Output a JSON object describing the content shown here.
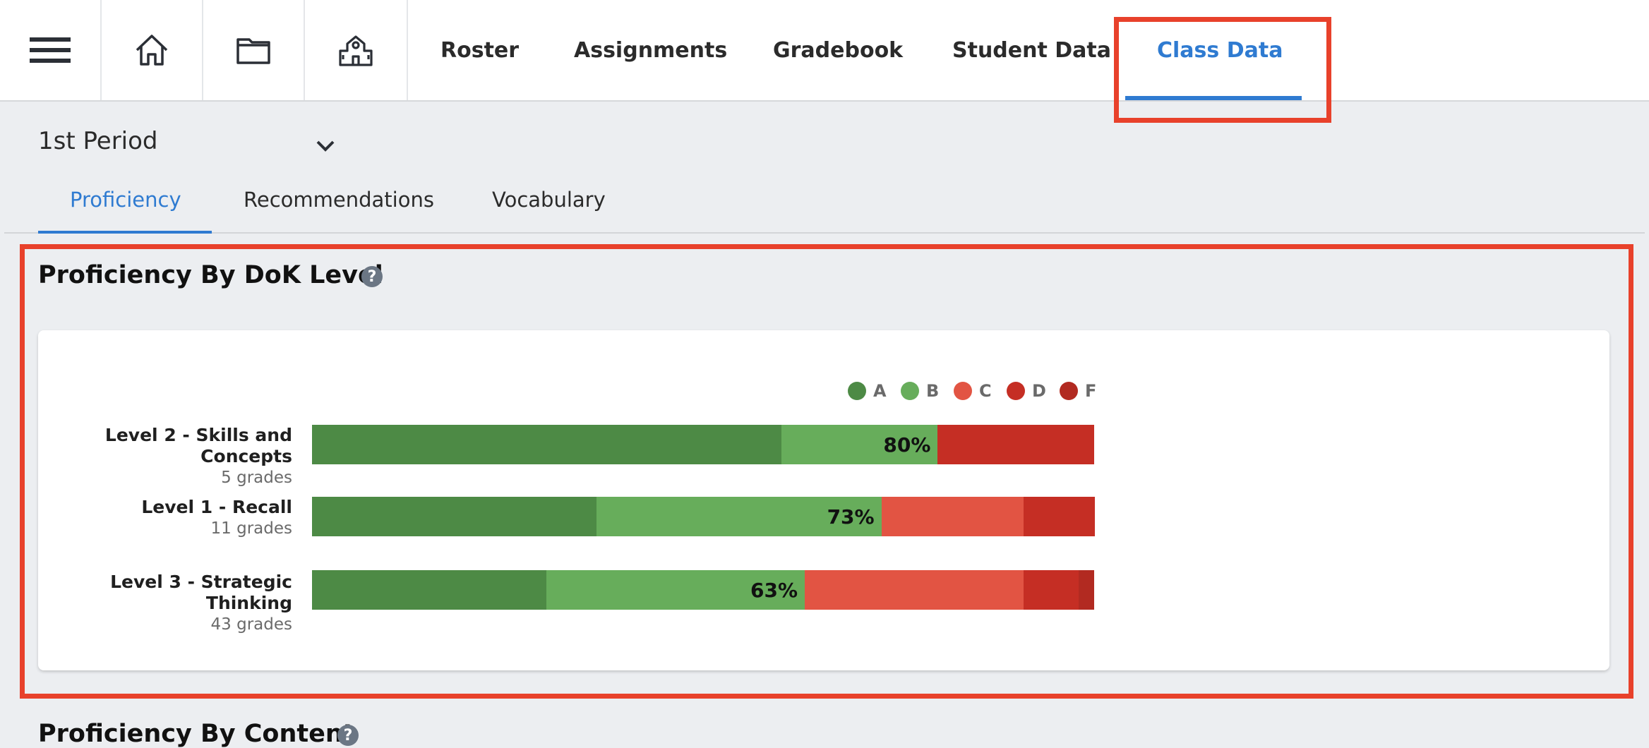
{
  "nav": {
    "icons": [
      "menu-icon",
      "home-icon",
      "folder-icon",
      "school-icon"
    ],
    "tabs": [
      "Roster",
      "Assignments",
      "Gradebook",
      "Student Data",
      "Class Data"
    ],
    "active_tab": "Class Data"
  },
  "period": {
    "selected": "1st Period"
  },
  "subtabs": {
    "items": [
      "Proficiency",
      "Recommendations",
      "Vocabulary"
    ],
    "active": "Proficiency"
  },
  "section": {
    "title": "Proficiency By DoK Level",
    "help": "?"
  },
  "next_section": {
    "title": "Proficiency By Content",
    "help": "?"
  },
  "colors": {
    "accent": "#2f7bd1",
    "highlight": "#e8412b",
    "A": "#4d8a45",
    "B": "#67ad5b",
    "C": "#e25443",
    "D": "#c52e24",
    "F": "#b22a21"
  },
  "chart_data": {
    "type": "bar",
    "stacked": true,
    "orientation": "horizontal",
    "legend": [
      "A",
      "B",
      "C",
      "D",
      "F"
    ],
    "legend_position": "top-right",
    "rows": [
      {
        "label": "Level 2 - Skills and Concepts",
        "sub": "5 grades",
        "percent_label": "80%",
        "segments": {
          "A": 60,
          "B": 20,
          "C": 0,
          "D": 20,
          "F": 0
        }
      },
      {
        "label": "Level 1 - Recall",
        "sub": "11 grades",
        "percent_label": "73%",
        "segments": {
          "A": 36.4,
          "B": 36.4,
          "C": 18.2,
          "D": 9.1,
          "F": 0
        }
      },
      {
        "label": "Level 3 - Strategic Thinking",
        "sub": "43 grades",
        "percent_label": "63%",
        "segments": {
          "A": 30,
          "B": 33,
          "C": 28,
          "D": 7,
          "F": 2
        }
      }
    ]
  }
}
